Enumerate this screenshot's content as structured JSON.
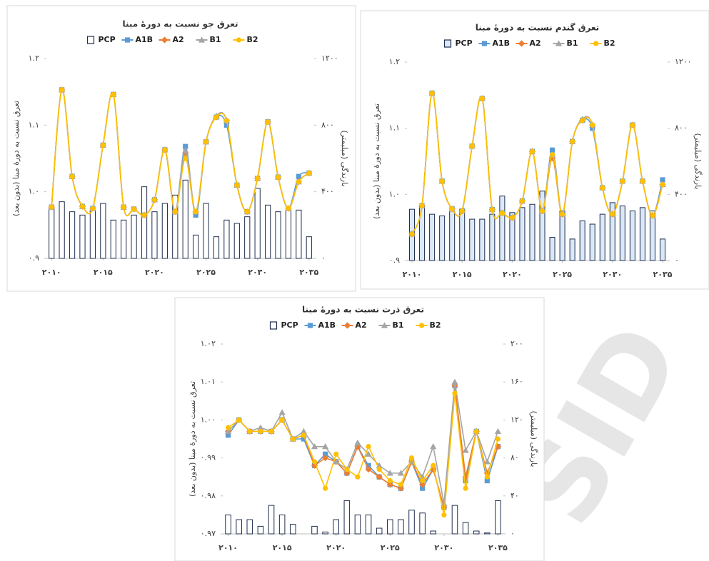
{
  "watermark": "SID",
  "chart_data": [
    {
      "type": "combo",
      "title": "تعرق جو نسبت به دورهٔ مبنا",
      "ylabel": "تعرق نسبت به دورهٔ مبنا (بدون بعد)",
      "y2label": "بارندگی (میلیمتر)",
      "smooth": true,
      "grid": false,
      "x": [
        2010,
        2011,
        2012,
        2013,
        2014,
        2015,
        2016,
        2017,
        2018,
        2019,
        2020,
        2021,
        2022,
        2023,
        2024,
        2025,
        2026,
        2027,
        2028,
        2029,
        2030,
        2031,
        2032,
        2033,
        2034,
        2035
      ],
      "xlim": [
        2009.5,
        2035.5
      ],
      "xticks": [
        {
          "value": 2010,
          "label": "۲۰۱۰"
        },
        {
          "value": 2015,
          "label": "۲۰۱۵"
        },
        {
          "value": 2020,
          "label": "۲۰۲۰"
        },
        {
          "value": 2025,
          "label": "۲۰۲۵"
        },
        {
          "value": 2030,
          "label": "۲۰۳۰"
        },
        {
          "value": 2035,
          "label": "۲۰۳۵"
        }
      ],
      "ylim": [
        0.9,
        1.2
      ],
      "yticks": [
        {
          "value": 0.9,
          "label": "۰.۹"
        },
        {
          "value": 1.0,
          "label": "۱.۰"
        },
        {
          "value": 1.1,
          "label": "۱.۱"
        },
        {
          "value": 1.2,
          "label": "۱.۲"
        }
      ],
      "y2lim": [
        0,
        1200
      ],
      "y2ticks": [
        {
          "value": 0,
          "label": "۰"
        },
        {
          "value": 400,
          "label": "۴۰۰"
        },
        {
          "value": 800,
          "label": "۸۰۰"
        },
        {
          "value": 1200,
          "label": "۱۲۰۰"
        }
      ],
      "series": [
        {
          "name": "PCP",
          "type": "bar",
          "axis": "y2",
          "color": "#ffffff",
          "values": [
            300,
            340,
            280,
            260,
            290,
            330,
            230,
            230,
            260,
            430,
            280,
            330,
            380,
            470,
            140,
            330,
            130,
            230,
            210,
            250,
            420,
            320,
            280,
            290,
            290,
            130
          ]
        },
        {
          "name": "A1B",
          "marker": "square",
          "color": "#5b9bd5",
          "values": [
            0.977,
            1.153,
            1.023,
            0.978,
            0.975,
            1.07,
            1.146,
            0.977,
            0.974,
            0.965,
            0.988,
            1.063,
            0.97,
            1.068,
            0.965,
            1.075,
            1.112,
            1.1,
            1.01,
            0.97,
            1.02,
            1.105,
            1.022,
            0.975,
            1.023,
            1.028
          ]
        },
        {
          "name": "A2",
          "marker": "diamond",
          "color": "#ed7d31",
          "values": [
            0.977,
            1.153,
            1.023,
            0.978,
            0.975,
            1.07,
            1.146,
            0.977,
            0.974,
            0.965,
            0.988,
            1.063,
            0.97,
            1.058,
            0.97,
            1.075,
            1.112,
            1.107,
            1.01,
            0.97,
            1.02,
            1.105,
            1.022,
            0.975,
            1.015,
            1.028
          ]
        },
        {
          "name": "B1",
          "marker": "triangle",
          "color": "#a5a5a5",
          "values": [
            0.977,
            1.153,
            1.023,
            0.978,
            0.975,
            1.07,
            1.146,
            0.977,
            0.974,
            0.965,
            0.988,
            1.063,
            0.97,
            1.062,
            0.97,
            1.075,
            1.114,
            1.107,
            1.01,
            0.97,
            1.02,
            1.105,
            1.022,
            0.975,
            1.015,
            1.028
          ]
        },
        {
          "name": "B2",
          "marker": "circle",
          "color": "#ffc000",
          "values": [
            0.977,
            1.153,
            1.023,
            0.978,
            0.975,
            1.07,
            1.146,
            0.977,
            0.974,
            0.965,
            0.988,
            1.063,
            0.97,
            1.05,
            0.97,
            1.075,
            1.112,
            1.107,
            1.01,
            0.97,
            1.02,
            1.105,
            1.022,
            0.975,
            1.015,
            1.028
          ]
        }
      ]
    },
    {
      "type": "combo",
      "title": "تعرق گندم نسبت به دورهٔ مبنا",
      "ylabel": "تعرق نسبت به دورهٔ مبنا (بدون بعد)",
      "y2label": "بارندگی (میلیمتر)",
      "smooth": true,
      "grid": false,
      "x": [
        2010,
        2011,
        2012,
        2013,
        2014,
        2015,
        2016,
        2017,
        2018,
        2019,
        2020,
        2021,
        2022,
        2023,
        2024,
        2025,
        2026,
        2027,
        2028,
        2029,
        2030,
        2031,
        2032,
        2033,
        2034,
        2035
      ],
      "xlim": [
        2009.5,
        2035.5
      ],
      "xticks": [
        {
          "value": 2010,
          "label": "۲۰۱۰"
        },
        {
          "value": 2015,
          "label": "۲۰۱۵"
        },
        {
          "value": 2020,
          "label": "۲۰۲۰"
        },
        {
          "value": 2025,
          "label": "۲۰۲۵"
        },
        {
          "value": 2030,
          "label": "۲۰۳۰"
        },
        {
          "value": 2035,
          "label": "۲۰۳۵"
        }
      ],
      "ylim": [
        0.9,
        1.2
      ],
      "yticks": [
        {
          "value": 0.9,
          "label": "۰.۹"
        },
        {
          "value": 1.0,
          "label": "۱.۰"
        },
        {
          "value": 1.1,
          "label": "۱.۱"
        },
        {
          "value": 1.2,
          "label": "۱.۲"
        }
      ],
      "y2lim": [
        0,
        1200
      ],
      "y2ticks": [
        {
          "value": 0,
          "label": "۰"
        },
        {
          "value": 400,
          "label": "۴۰۰"
        },
        {
          "value": 800,
          "label": "۸۰۰"
        },
        {
          "value": 1200,
          "label": "۱۲۰۰"
        }
      ],
      "series": [
        {
          "name": "PCP",
          "type": "bar",
          "axis": "y2",
          "color": "#dbe8f7",
          "values": [
            310,
            330,
            280,
            270,
            300,
            310,
            250,
            250,
            280,
            390,
            290,
            320,
            340,
            420,
            140,
            300,
            130,
            240,
            220,
            280,
            350,
            330,
            300,
            320,
            300,
            130
          ]
        },
        {
          "name": "A1B",
          "marker": "square",
          "color": "#5b9bd5",
          "values": [
            0.94,
            0.983,
            1.153,
            1.02,
            0.978,
            0.975,
            1.073,
            1.145,
            0.977,
            0.972,
            0.965,
            0.99,
            1.065,
            0.975,
            1.067,
            0.97,
            1.08,
            1.112,
            1.1,
            1.01,
            0.97,
            1.02,
            1.105,
            1.02,
            0.968,
            1.022
          ]
        },
        {
          "name": "A2",
          "marker": "diamond",
          "color": "#ed7d31",
          "values": [
            0.94,
            0.983,
            1.153,
            1.02,
            0.978,
            0.975,
            1.073,
            1.145,
            0.977,
            0.972,
            0.965,
            0.99,
            1.065,
            0.975,
            1.055,
            0.97,
            1.08,
            1.112,
            1.105,
            1.01,
            0.97,
            1.02,
            1.105,
            1.02,
            0.968,
            1.015
          ]
        },
        {
          "name": "B1",
          "marker": "triangle",
          "color": "#a5a5a5",
          "values": [
            0.94,
            0.983,
            1.153,
            1.02,
            0.978,
            0.975,
            1.073,
            1.145,
            0.977,
            0.972,
            0.965,
            0.99,
            1.065,
            0.975,
            1.06,
            0.97,
            1.08,
            1.114,
            1.105,
            1.01,
            0.97,
            1.02,
            1.105,
            1.02,
            0.968,
            1.015
          ]
        },
        {
          "name": "B2",
          "marker": "circle",
          "color": "#ffc000",
          "values": [
            0.94,
            0.983,
            1.153,
            1.02,
            0.978,
            0.975,
            1.073,
            1.145,
            0.977,
            0.972,
            0.965,
            0.99,
            1.065,
            0.975,
            1.06,
            0.97,
            1.08,
            1.112,
            1.105,
            1.01,
            0.97,
            1.02,
            1.105,
            1.02,
            0.968,
            1.015
          ]
        }
      ]
    },
    {
      "type": "combo",
      "title": "تعرق ذرت نسبت به دورهٔ مبنا",
      "ylabel": "تعرق نسبت به دورهٔ مبنا (بدون بعد)",
      "y2label": "بارندگی (میلیمتر)",
      "smooth": false,
      "grid": false,
      "x": [
        2010,
        2011,
        2012,
        2013,
        2014,
        2015,
        2016,
        2017,
        2018,
        2019,
        2020,
        2021,
        2022,
        2023,
        2024,
        2025,
        2026,
        2027,
        2028,
        2029,
        2030,
        2031,
        2032,
        2033,
        2034,
        2035
      ],
      "xlim": [
        2009.5,
        2035.5
      ],
      "xticks": [
        {
          "value": 2010,
          "label": "۲۰۱۰"
        },
        {
          "value": 2015,
          "label": "۲۰۱۵"
        },
        {
          "value": 2020,
          "label": "۲۰۲۰"
        },
        {
          "value": 2025,
          "label": "۲۰۲۵"
        },
        {
          "value": 2030,
          "label": "۲۰۳۰"
        },
        {
          "value": 2035,
          "label": "۲۰۳۵"
        }
      ],
      "ylim": [
        0.97,
        1.02
      ],
      "yticks": [
        {
          "value": 0.97,
          "label": "۰.۹۷"
        },
        {
          "value": 0.98,
          "label": "۰.۹۸"
        },
        {
          "value": 0.99,
          "label": "۰.۹۹"
        },
        {
          "value": 1.0,
          "label": "۱.۰۰"
        },
        {
          "value": 1.01,
          "label": "۱.۰۱"
        },
        {
          "value": 1.02,
          "label": "۱.۰۲"
        }
      ],
      "y2lim": [
        0,
        200
      ],
      "y2ticks": [
        {
          "value": 0,
          "label": "۰"
        },
        {
          "value": 40,
          "label": "۴۰"
        },
        {
          "value": 80,
          "label": "۸۰"
        },
        {
          "value": 120,
          "label": "۱۲۰"
        },
        {
          "value": 160,
          "label": "۱۶۰"
        },
        {
          "value": 200,
          "label": "۲۰۰"
        }
      ],
      "series": [
        {
          "name": "PCP",
          "type": "bar",
          "axis": "y2",
          "color": "#ffffff",
          "values": [
            20,
            15,
            15,
            8,
            30,
            20,
            10,
            0,
            8,
            2,
            15,
            35,
            20,
            20,
            6,
            15,
            15,
            25,
            22,
            3,
            0,
            30,
            12,
            3,
            1,
            35
          ]
        },
        {
          "name": "A1B",
          "marker": "square",
          "color": "#5b9bd5",
          "values": [
            0.996,
            1.0,
            0.997,
            0.997,
            0.997,
            1.0,
            0.995,
            0.995,
            0.988,
            0.991,
            0.989,
            0.986,
            0.993,
            0.988,
            0.985,
            0.983,
            0.982,
            0.989,
            0.982,
            0.987,
            0.977,
            1.009,
            0.984,
            0.997,
            0.984,
            0.993
          ]
        },
        {
          "name": "A2",
          "marker": "diamond",
          "color": "#ed7d31",
          "values": [
            0.997,
            1.0,
            0.997,
            0.997,
            0.997,
            1.0,
            0.995,
            0.996,
            0.988,
            0.99,
            0.989,
            0.986,
            0.993,
            0.987,
            0.985,
            0.983,
            0.982,
            0.989,
            0.983,
            0.987,
            0.977,
            1.009,
            0.985,
            0.997,
            0.986,
            0.993
          ]
        },
        {
          "name": "B1",
          "marker": "triangle",
          "color": "#a5a5a5",
          "values": [
            0.997,
            1.0,
            0.997,
            0.998,
            0.997,
            1.002,
            0.995,
            0.997,
            0.993,
            0.993,
            0.989,
            0.987,
            0.994,
            0.991,
            0.988,
            0.986,
            0.986,
            0.989,
            0.985,
            0.993,
            0.978,
            1.01,
            0.992,
            0.997,
            0.989,
            0.997
          ]
        },
        {
          "name": "B2",
          "marker": "circle",
          "color": "#ffc000",
          "values": [
            0.998,
            1.0,
            0.997,
            0.997,
            0.997,
            1.0,
            0.995,
            0.996,
            0.989,
            0.982,
            0.991,
            0.987,
            0.985,
            0.993,
            0.987,
            0.984,
            0.983,
            0.99,
            0.984,
            0.988,
            0.975,
            1.007,
            0.982,
            0.997,
            0.985,
            0.995
          ]
        }
      ]
    }
  ]
}
